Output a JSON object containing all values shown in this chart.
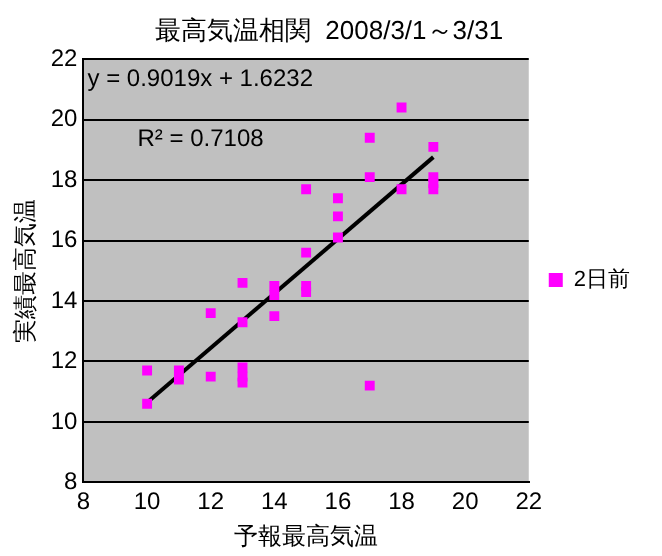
{
  "chart_data": {
    "type": "scatter",
    "title": "最高気温相関  2008/3/1～3/31",
    "xlabel": "予報最高気温",
    "ylabel": "実績最高気温",
    "annotations": [
      "y = 0.9019x + 1.6232",
      "R² = 0.7108"
    ],
    "xlim": [
      8,
      22
    ],
    "xticks": [
      8,
      10,
      12,
      14,
      16,
      18,
      20,
      22
    ],
    "ylim": [
      8,
      22
    ],
    "yticks": [
      8,
      10,
      12,
      14,
      16,
      18,
      20,
      22
    ],
    "grid": "y",
    "legend": "right",
    "series": [
      {
        "name": "2日前",
        "color": "#ff00ff",
        "marker": "square",
        "x": [
          10,
          10,
          11,
          11,
          12,
          12,
          13,
          13,
          13,
          13,
          13,
          14,
          14,
          14,
          15,
          15,
          15,
          15,
          16,
          16,
          16,
          17,
          17,
          17,
          18,
          18,
          19,
          19,
          19,
          19
        ],
        "values": [
          11.7,
          10.6,
          11.7,
          11.4,
          13.6,
          11.5,
          14.6,
          13.3,
          11.8,
          11.5,
          11.3,
          14.5,
          14.2,
          13.5,
          17.7,
          15.6,
          14.5,
          14.3,
          17.4,
          16.8,
          16.1,
          19.4,
          18.1,
          11.2,
          20.4,
          17.7,
          19.1,
          18.1,
          17.9,
          17.7
        ]
      },
      {
        "type": "line",
        "color": "#000000",
        "marker": "none",
        "x": [
          10,
          19
        ],
        "values": [
          10.64,
          18.76
        ]
      }
    ]
  }
}
